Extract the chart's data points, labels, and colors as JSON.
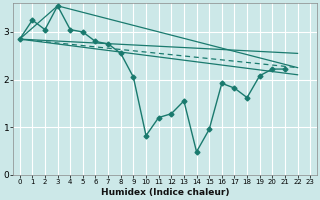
{
  "xlabel": "Humidex (Indice chaleur)",
  "ylabel": "",
  "bg_color": "#cce8e8",
  "grid_color": "#ffffff",
  "line_color": "#1a7a6e",
  "xlim": [
    -0.5,
    23.5
  ],
  "ylim": [
    0,
    3.6
  ],
  "yticks": [
    0,
    1,
    2,
    3
  ],
  "xticks": [
    0,
    1,
    2,
    3,
    4,
    5,
    6,
    7,
    8,
    9,
    10,
    11,
    12,
    13,
    14,
    15,
    16,
    17,
    18,
    19,
    20,
    21,
    22,
    23
  ],
  "series_main": {
    "x": [
      0,
      1,
      2,
      3,
      4,
      5,
      6,
      7,
      8,
      9,
      10,
      11,
      12,
      13,
      14,
      15,
      16,
      17,
      18,
      19,
      20,
      21,
      22
    ],
    "y": [
      2.85,
      3.25,
      3.05,
      3.55,
      3.05,
      3.0,
      2.8,
      2.75,
      2.55,
      2.05,
      0.82,
      1.2,
      1.28,
      1.55,
      0.48,
      0.95,
      1.92,
      1.82,
      1.62,
      2.08,
      2.22,
      2.22,
      null
    ]
  },
  "envelope_upper_line": {
    "x": [
      0,
      3,
      22
    ],
    "y": [
      2.85,
      3.55,
      2.25
    ]
  },
  "envelope_mid_upper": {
    "x": [
      0,
      22
    ],
    "y": [
      2.85,
      2.55
    ]
  },
  "envelope_mid_lower": {
    "x": [
      0,
      22
    ],
    "y": [
      2.85,
      2.25
    ]
  },
  "envelope_lower_line": {
    "x": [
      0,
      22
    ],
    "y": [
      2.85,
      2.1
    ]
  }
}
